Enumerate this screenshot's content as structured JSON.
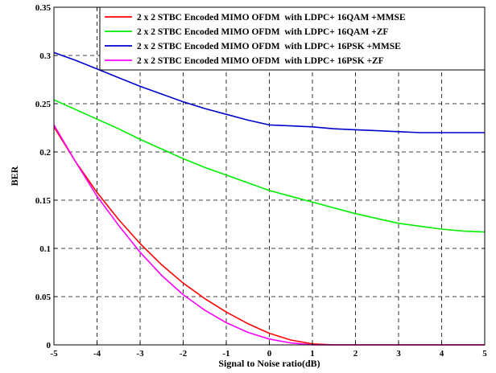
{
  "chart_data": {
    "type": "line",
    "title": "",
    "xlabel": "Signal to Noise ratio(dB)",
    "ylabel": "BER",
    "xlim": [
      -5,
      5
    ],
    "ylim": [
      0,
      0.35
    ],
    "x_ticks": [
      "-5",
      "-4",
      "-3",
      "-2",
      "-1",
      "0",
      "1",
      "2",
      "3",
      "4",
      "5"
    ],
    "y_ticks": [
      "0",
      "0.05",
      "0.1",
      "0.15",
      "0.2",
      "0.25",
      "0.3",
      "0.35"
    ],
    "grid": true,
    "legend_position": "top-right",
    "x": [
      -5,
      -4.5,
      -4,
      -3.5,
      -3,
      -2.5,
      -2,
      -1.5,
      -1,
      -0.5,
      0,
      0.5,
      1,
      1.5,
      2,
      2.5,
      3,
      3.5,
      4,
      4.5,
      5
    ],
    "series": [
      {
        "name": "2 x 2 STBC Encoded MIMO OFDM  with LDPC+ 16QAM +MMSE",
        "color": "#ff0000",
        "values": [
          0.226,
          0.19,
          0.158,
          0.13,
          0.105,
          0.083,
          0.064,
          0.048,
          0.034,
          0.022,
          0.012,
          0.005,
          0.001,
          0.0,
          0.0,
          0.0,
          0.0,
          0.0,
          0.0,
          0.0,
          0.0
        ]
      },
      {
        "name": "2 x 2 STBC Encoded MIMO OFDM  with LDPC+ 16QAM +ZF",
        "color": "#00ee00",
        "values": [
          0.254,
          0.244,
          0.234,
          0.224,
          0.213,
          0.203,
          0.193,
          0.184,
          0.176,
          0.168,
          0.16,
          0.154,
          0.148,
          0.142,
          0.136,
          0.131,
          0.126,
          0.123,
          0.12,
          0.118,
          0.117
        ]
      },
      {
        "name": "2 x 2 STBC Encoded MIMO OFDM  with LDPC+ 16PSK +MMSE",
        "color": "#0000cc",
        "values": [
          0.303,
          0.295,
          0.286,
          0.277,
          0.268,
          0.26,
          0.252,
          0.245,
          0.239,
          0.233,
          0.228,
          0.227,
          0.226,
          0.224,
          0.223,
          0.222,
          0.221,
          0.22,
          0.22,
          0.22,
          0.22
        ]
      },
      {
        "name": "2 x 2 STBC Encoded MIMO OFDM  with LDPC+ 16PSK +ZF",
        "color": "#ff00ff",
        "values": [
          0.228,
          0.19,
          0.154,
          0.124,
          0.096,
          0.072,
          0.052,
          0.036,
          0.023,
          0.013,
          0.006,
          0.002,
          0.0,
          0.0,
          0.0,
          0.0,
          0.0,
          0.0,
          0.0,
          0.0,
          0.0
        ]
      }
    ]
  }
}
